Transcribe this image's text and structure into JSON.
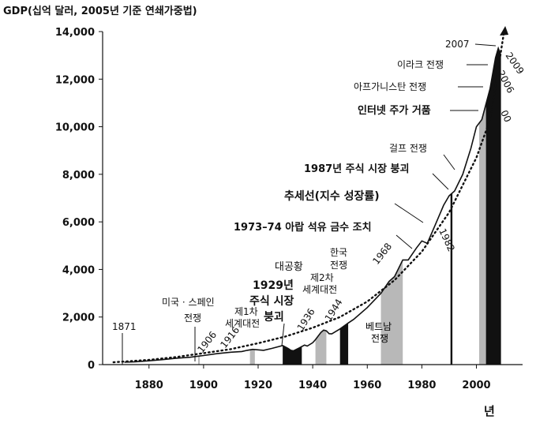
{
  "chart_data": {
    "type": "area",
    "ylabel": "GDP(십억 달러, 2005년 기준 연쇄가중법)",
    "xlabel": "년",
    "xlim": [
      1863,
      2012
    ],
    "ylim": [
      0,
      14000
    ],
    "x_ticks": [
      1880,
      1900,
      1920,
      1940,
      1960,
      1980,
      2000
    ],
    "y_ticks": [
      0,
      2000,
      4000,
      6000,
      8000,
      10000,
      12000,
      14000
    ],
    "y_tick_labels": [
      "0",
      "2,000",
      "4,000",
      "6,000",
      "8,000",
      "10,000",
      "12,000",
      "14,000"
    ],
    "series": [
      {
        "x": [
          1871,
          1875,
          1880,
          1885,
          1890,
          1895,
          1900,
          1905,
          1910,
          1914,
          1916,
          1918,
          1920,
          1922,
          1925,
          1929,
          1930,
          1931,
          1932,
          1933,
          1935,
          1937,
          1938,
          1940,
          1941,
          1943,
          1944,
          1945,
          1946,
          1947,
          1950,
          1953,
          1955,
          1960,
          1965,
          1968,
          1970,
          1973,
          1975,
          1978,
          1980,
          1982,
          1985,
          1988,
          1990,
          1992,
          1995,
          1998,
          2000,
          2002,
          2005,
          2007,
          2008,
          2009
        ],
        "values": [
          100,
          120,
          160,
          210,
          270,
          310,
          380,
          460,
          520,
          550,
          600,
          640,
          620,
          600,
          680,
          800,
          740,
          680,
          600,
          580,
          700,
          820,
          780,
          920,
          1050,
          1350,
          1450,
          1420,
          1300,
          1290,
          1500,
          1750,
          1900,
          2400,
          3000,
          3500,
          3700,
          4400,
          4400,
          4900,
          5200,
          5100,
          5900,
          6700,
          7100,
          7300,
          8000,
          9100,
          10000,
          10300,
          11600,
          12900,
          13300,
          13000
        ]
      },
      {
        "x": [
          1867,
          1880,
          1890,
          1900,
          1910,
          1920,
          1930,
          1940,
          1950,
          1960,
          1970,
          1980,
          1990,
          2000,
          2005,
          2010
        ],
        "values": [
          100,
          200,
          320,
          480,
          650,
          900,
          1180,
          1550,
          2000,
          2650,
          3550,
          4750,
          6400,
          8700,
          10300,
          13900
        ]
      }
    ],
    "shaded_periods": [
      {
        "label": "미국·스페인 전쟁",
        "start": 1898,
        "end": 1898.6,
        "shade": "gray"
      },
      {
        "label": "제1차 세계대전",
        "start": 1917,
        "end": 1918.8,
        "shade": "gray"
      },
      {
        "label": "대공황",
        "start": 1929,
        "end": 1936,
        "shade": "black"
      },
      {
        "label": "제2차 세계대전",
        "start": 1941,
        "end": 1945,
        "shade": "gray"
      },
      {
        "label": "한국 전쟁",
        "start": 1950,
        "end": 1953,
        "shade": "black"
      },
      {
        "label": "베트남 전쟁",
        "start": 1965,
        "end": 1973,
        "shade": "gray"
      },
      {
        "label": "걸프 전쟁",
        "start": 1990.5,
        "end": 1991.2,
        "shade": "black"
      },
      {
        "label": "아프가니스탄 전쟁",
        "start": 2001,
        "end": 2003.5,
        "shade": "gray"
      },
      {
        "label": "이라크 전쟁",
        "start": 2003.5,
        "end": 2009,
        "shade": "black"
      }
    ],
    "annotations": {
      "y1871": "1871",
      "span_spanish_war": "미국 · 스페인",
      "span_spanish_war_2": "전쟁",
      "y1906": "1906",
      "y1916": "1916",
      "ww1_1": "제1차",
      "ww1_2": "세계대전",
      "depression": "대공황",
      "crash_1": "1929년",
      "crash_2": "주식 시장",
      "crash_3": "붕괴",
      "y1936": "1936",
      "ww2_1": "제2차",
      "ww2_2": "세계대전",
      "y1944": "1944",
      "korea_1": "한국",
      "korea_2": "전쟁",
      "vietnam_1": "베트남",
      "vietnam_2": "전쟁",
      "y1968": "1968",
      "oil": "1973–74 아랍 석유 금수 조치",
      "trend": "추세선(지수 성장률)",
      "crash1987": "1987년 주식 시장 붕괴",
      "y1982": "1982",
      "gulf": "걸프 전쟁",
      "dotcom": "인터넷 주가 거품",
      "afghan": "아프가니스탄 전쟁",
      "iraq": "이라크 전쟁",
      "y2007": "2007",
      "y2009": "2009",
      "y2006": "2006",
      "y2000": "00"
    }
  }
}
